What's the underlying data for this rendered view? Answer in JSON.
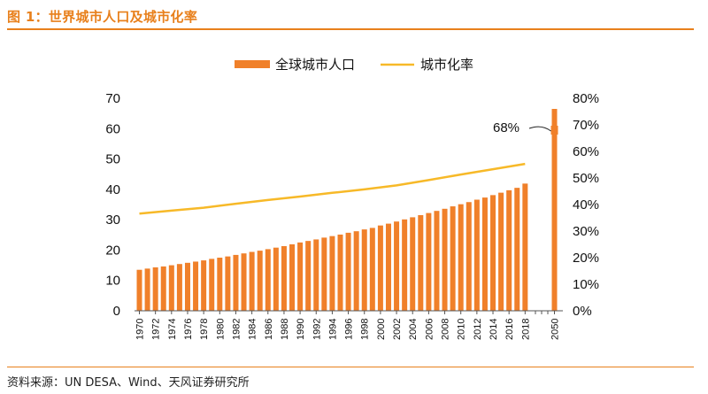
{
  "figure": {
    "title": "图 1：世界城市人口及城市化率",
    "source": "资料来源：UN DESA、Wind、天风证券研究所"
  },
  "colors": {
    "accent": "#e8801c",
    "bar": "#f0802a",
    "line": "#f7b928"
  },
  "chart_data": {
    "type": "bar+line",
    "legend": [
      "全球城市人口",
      "城市化率"
    ],
    "legend_position": "top-center",
    "grid": false,
    "x_tick_labels": [
      "1970",
      "1972",
      "1974",
      "1976",
      "1978",
      "1980",
      "1982",
      "1984",
      "1986",
      "1988",
      "1990",
      "1992",
      "1994",
      "1996",
      "1998",
      "2000",
      "2002",
      "2004",
      "2006",
      "2008",
      "2010",
      "2012",
      "2014",
      "2016",
      "2018",
      "2050"
    ],
    "left_axis": {
      "ticks": [
        0,
        10,
        20,
        30,
        40,
        50,
        60,
        70
      ],
      "ylim": [
        0,
        70
      ]
    },
    "right_axis": {
      "ticks": [
        "0%",
        "10%",
        "20%",
        "30%",
        "40%",
        "50%",
        "60%",
        "70%",
        "80%"
      ],
      "ylim": [
        0,
        80
      ]
    },
    "series": [
      {
        "name": "全球城市人口",
        "kind": "bar",
        "axis": "left",
        "x": [
          1970,
          1971,
          1972,
          1973,
          1974,
          1975,
          1976,
          1977,
          1978,
          1979,
          1980,
          1981,
          1982,
          1983,
          1984,
          1985,
          1986,
          1987,
          1988,
          1989,
          1990,
          1991,
          1992,
          1993,
          1994,
          1995,
          1996,
          1997,
          1998,
          1999,
          2000,
          2001,
          2002,
          2003,
          2004,
          2005,
          2006,
          2007,
          2008,
          2009,
          2010,
          2011,
          2012,
          2013,
          2014,
          2015,
          2016,
          2017,
          2018,
          2050
        ],
        "values": [
          13.5,
          13.9,
          14.3,
          14.6,
          15.0,
          15.4,
          15.8,
          16.2,
          16.6,
          17.1,
          17.5,
          17.9,
          18.4,
          18.9,
          19.4,
          19.8,
          20.3,
          20.8,
          21.3,
          21.9,
          22.5,
          23.0,
          23.5,
          24.1,
          24.6,
          25.1,
          25.7,
          26.2,
          26.8,
          27.3,
          28.1,
          28.7,
          29.4,
          30.1,
          30.8,
          31.5,
          32.2,
          32.9,
          33.6,
          34.4,
          35.1,
          35.8,
          36.6,
          37.3,
          38.1,
          38.9,
          39.7,
          40.5,
          41.9,
          66.5
        ]
      },
      {
        "name": "城市化率",
        "kind": "line",
        "axis": "right",
        "x": [
          1970,
          1974,
          1978,
          1982,
          1986,
          1990,
          1994,
          1998,
          2002,
          2006,
          2010,
          2014,
          2018
        ],
        "values": [
          36.6,
          37.7,
          38.8,
          40.3,
          41.7,
          43.0,
          44.4,
          45.7,
          47.2,
          49.2,
          51.3,
          53.3,
          55.3
        ]
      }
    ],
    "annotations": [
      {
        "text": "68%",
        "x": 2050,
        "y": 68,
        "axis": "right"
      }
    ]
  }
}
